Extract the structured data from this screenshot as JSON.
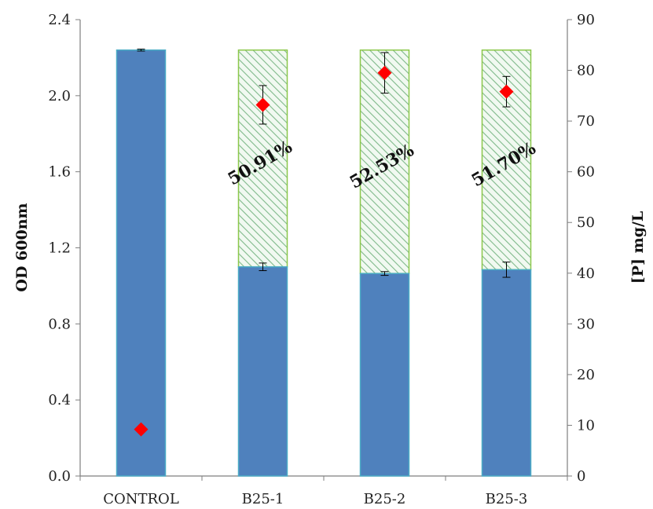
{
  "chart_data": {
    "type": "bar",
    "categories": [
      "CONTROL",
      "B25-1",
      "B25-2",
      "B25-3"
    ],
    "series": [
      {
        "role": "od-total",
        "values": [
          2.24,
          2.24,
          2.24,
          2.24
        ]
      },
      {
        "role": "od-lower",
        "values": [
          2.24,
          1.1,
          1.065,
          1.085
        ],
        "errors": [
          0.005,
          0.02,
          0.01,
          0.04
        ]
      },
      {
        "role": "p-concentration",
        "values": [
          9.2,
          73.2,
          79.5,
          75.8
        ],
        "errors": [
          null,
          3.8,
          4.0,
          3.0
        ],
        "axis": "right"
      }
    ],
    "annotations": [
      "",
      "50.91%",
      "52.53%",
      "51.70%"
    ],
    "ylabel": "OD 600nm",
    "y2label": "[P] mg/L",
    "ylim": [
      0,
      2.4
    ],
    "y2lim": [
      0,
      90
    ],
    "yticks": [
      "0.0",
      "0.4",
      "0.8",
      "1.2",
      "1.6",
      "2.0",
      "2.4"
    ],
    "y2ticks": [
      "0",
      "10",
      "20",
      "30",
      "40",
      "50",
      "60",
      "70",
      "80",
      "90"
    ],
    "grid": false,
    "colors": {
      "bar_fill": "#4f81bd",
      "bar_edge": "#4bacc6",
      "hatch_line": "#7fb98a",
      "hatch_edge": "#8cc84b",
      "marker": "#ff0000",
      "axis": "#7f7f7f"
    }
  }
}
